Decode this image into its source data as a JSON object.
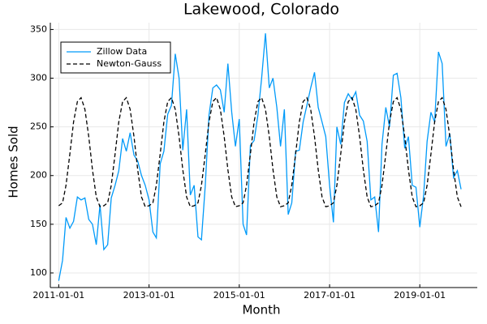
{
  "chart_data": {
    "type": "line",
    "title": "Lakewood, Colorado",
    "x_label": "Month",
    "y_label": "Homes Sold",
    "x": [
      "2011-01-01",
      "2011-02-01",
      "2011-03-01",
      "2011-04-01",
      "2011-05-01",
      "2011-06-01",
      "2011-07-01",
      "2011-08-01",
      "2011-09-01",
      "2011-10-01",
      "2011-11-01",
      "2011-12-01",
      "2012-01-01",
      "2012-02-01",
      "2012-03-01",
      "2012-04-01",
      "2012-05-01",
      "2012-06-01",
      "2012-07-01",
      "2012-08-01",
      "2012-09-01",
      "2012-10-01",
      "2012-11-01",
      "2012-12-01",
      "2013-01-01",
      "2013-02-01",
      "2013-03-01",
      "2013-04-01",
      "2013-05-01",
      "2013-06-01",
      "2013-07-01",
      "2013-08-01",
      "2013-09-01",
      "2013-10-01",
      "2013-11-01",
      "2013-12-01",
      "2014-01-01",
      "2014-02-01",
      "2014-03-01",
      "2014-04-01",
      "2014-05-01",
      "2014-06-01",
      "2014-07-01",
      "2014-08-01",
      "2014-09-01",
      "2014-10-01",
      "2014-11-01",
      "2014-12-01",
      "2015-01-01",
      "2015-02-01",
      "2015-03-01",
      "2015-04-01",
      "2015-05-01",
      "2015-06-01",
      "2015-07-01",
      "2015-08-01",
      "2015-09-01",
      "2015-10-01",
      "2015-11-01",
      "2015-12-01",
      "2016-01-01",
      "2016-02-01",
      "2016-03-01",
      "2016-04-01",
      "2016-05-01",
      "2016-06-01",
      "2016-07-01",
      "2016-08-01",
      "2016-09-01",
      "2016-10-01",
      "2016-11-01",
      "2016-12-01",
      "2017-01-01",
      "2017-02-01",
      "2017-03-01",
      "2017-04-01",
      "2017-05-01",
      "2017-06-01",
      "2017-07-01",
      "2017-08-01",
      "2017-09-01",
      "2017-10-01",
      "2017-11-01",
      "2017-12-01",
      "2018-01-01",
      "2018-02-01",
      "2018-03-01",
      "2018-04-01",
      "2018-05-01",
      "2018-06-01",
      "2018-07-01",
      "2018-08-01",
      "2018-09-01",
      "2018-10-01",
      "2018-11-01",
      "2018-12-01",
      "2019-01-01",
      "2019-02-01",
      "2019-03-01",
      "2019-04-01",
      "2019-05-01",
      "2019-06-01",
      "2019-07-01",
      "2019-08-01",
      "2019-09-01",
      "2019-10-01",
      "2019-11-01",
      "2019-12-01"
    ],
    "series": [
      {
        "name": "Zillow Data",
        "color": "#009af9",
        "style": "solid",
        "values": [
          92,
          113,
          157,
          146,
          153,
          178,
          175,
          177,
          155,
          150,
          129,
          170,
          124,
          129,
          177,
          190,
          205,
          238,
          225,
          244,
          221,
          215,
          200,
          190,
          175,
          142,
          136,
          212,
          225,
          263,
          272,
          325,
          300,
          226,
          268,
          180,
          190,
          137,
          134,
          190,
          262,
          290,
          293,
          288,
          265,
          315,
          265,
          230,
          258,
          150,
          139,
          231,
          236,
          262,
          300,
          346,
          290,
          300,
          270,
          230,
          268,
          160,
          172,
          225,
          226,
          255,
          272,
          290,
          306,
          270,
          255,
          240,
          190,
          152,
          250,
          232,
          275,
          284,
          278,
          286,
          262,
          256,
          235,
          175,
          178,
          142,
          232,
          270,
          250,
          303,
          305,
          280,
          228,
          240,
          190,
          188,
          147,
          180,
          235,
          265,
          255,
          327,
          315,
          230,
          243,
          198,
          205,
          186
        ]
      },
      {
        "name": "Newton-Gauss",
        "color": "#000000",
        "style": "dashed",
        "values": [
          169,
          172,
          190,
          222,
          255,
          276,
          280,
          268,
          240,
          206,
          178,
          168,
          169,
          172,
          190,
          222,
          255,
          276,
          280,
          268,
          240,
          206,
          178,
          168,
          169,
          172,
          190,
          222,
          255,
          276,
          280,
          268,
          240,
          206,
          178,
          168,
          169,
          172,
          190,
          222,
          255,
          276,
          280,
          268,
          240,
          206,
          178,
          168,
          169,
          172,
          190,
          222,
          255,
          276,
          280,
          268,
          240,
          206,
          178,
          168,
          169,
          172,
          190,
          222,
          255,
          276,
          280,
          268,
          240,
          206,
          178,
          168,
          169,
          172,
          190,
          222,
          255,
          276,
          280,
          268,
          240,
          206,
          178,
          168,
          169,
          172,
          190,
          222,
          255,
          276,
          280,
          268,
          240,
          206,
          178,
          168,
          169,
          172,
          190,
          222,
          255,
          276,
          280,
          268,
          240,
          206,
          178,
          168
        ]
      }
    ],
    "xlim": [
      "2010-10-25",
      "2020-04-10"
    ],
    "xticks": [
      "2011-01-01",
      "2013-01-01",
      "2015-01-01",
      "2017-01-01",
      "2019-01-01"
    ],
    "ylim": [
      85,
      357
    ],
    "yticks": [
      100,
      150,
      200,
      250,
      300,
      350
    ],
    "grid": true,
    "legend": "top-left"
  }
}
